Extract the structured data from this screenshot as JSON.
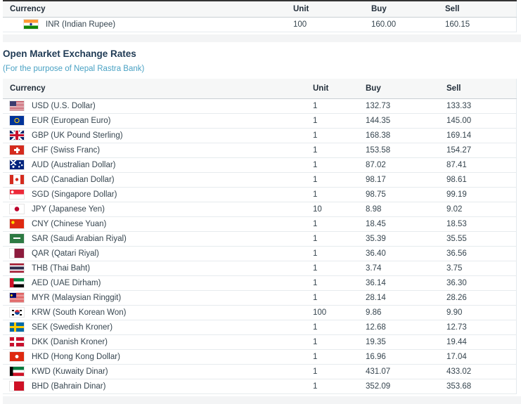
{
  "colors": {
    "heading": "#1f3a54",
    "subtitle_teal": "#4aa2c4",
    "body_text": "#36454f",
    "header_band_bg": "#f6f7f7",
    "table_top_border": "#333333",
    "header_bottom_border": "#c9d0d4",
    "row_separator": "#e6ebee",
    "foot_strip_bg": "#f3f4f5"
  },
  "inr_table": {
    "headers": {
      "currency": "Currency",
      "unit": "Unit",
      "buy": "Buy",
      "sell": "Sell"
    },
    "rows": [
      {
        "flag": "in",
        "flag_name": "india-flag-icon",
        "label": "INR (Indian Rupee)",
        "unit": "100",
        "buy": "160.00",
        "sell": "160.15"
      }
    ]
  },
  "section": {
    "title": "Open Market Exchange Rates",
    "subtitle": "(For the purpose of Nepal Rastra Bank)"
  },
  "open_market_table": {
    "headers": {
      "currency": "Currency",
      "unit": "Unit",
      "buy": "Buy",
      "sell": "Sell"
    },
    "rows": [
      {
        "flag": "us",
        "flag_name": "usa-flag-icon",
        "label": "USD (U.S. Dollar)",
        "unit": "1",
        "buy": "132.73",
        "sell": "133.33"
      },
      {
        "flag": "eu",
        "flag_name": "eu-flag-icon",
        "label": "EUR (European Euro)",
        "unit": "1",
        "buy": "144.35",
        "sell": "145.00"
      },
      {
        "flag": "gb",
        "flag_name": "uk-flag-icon",
        "label": "GBP (UK Pound Sterling)",
        "unit": "1",
        "buy": "168.38",
        "sell": "169.14"
      },
      {
        "flag": "ch",
        "flag_name": "switzerland-flag-icon",
        "label": "CHF (Swiss Franc)",
        "unit": "1",
        "buy": "153.58",
        "sell": "154.27"
      },
      {
        "flag": "au",
        "flag_name": "australia-flag-icon",
        "label": "AUD (Australian Dollar)",
        "unit": "1",
        "buy": "87.02",
        "sell": "87.41"
      },
      {
        "flag": "ca",
        "flag_name": "canada-flag-icon",
        "label": "CAD (Canadian Dollar)",
        "unit": "1",
        "buy": "98.17",
        "sell": "98.61"
      },
      {
        "flag": "sg",
        "flag_name": "singapore-flag-icon",
        "label": "SGD (Singapore Dollar)",
        "unit": "1",
        "buy": "98.75",
        "sell": "99.19"
      },
      {
        "flag": "jp",
        "flag_name": "japan-flag-icon",
        "label": "JPY (Japanese Yen)",
        "unit": "10",
        "buy": "8.98",
        "sell": "9.02"
      },
      {
        "flag": "cn",
        "flag_name": "china-flag-icon",
        "label": "CNY (Chinese Yuan)",
        "unit": "1",
        "buy": "18.45",
        "sell": "18.53"
      },
      {
        "flag": "sa",
        "flag_name": "saudi-arabia-flag-icon",
        "label": "SAR (Saudi Arabian Riyal)",
        "unit": "1",
        "buy": "35.39",
        "sell": "35.55"
      },
      {
        "flag": "qa",
        "flag_name": "qatar-flag-icon",
        "label": "QAR (Qatari Riyal)",
        "unit": "1",
        "buy": "36.40",
        "sell": "36.56"
      },
      {
        "flag": "th",
        "flag_name": "thailand-flag-icon",
        "label": "THB (Thai Baht)",
        "unit": "1",
        "buy": "3.74",
        "sell": "3.75"
      },
      {
        "flag": "ae",
        "flag_name": "uae-flag-icon",
        "label": "AED (UAE Dirham)",
        "unit": "1",
        "buy": "36.14",
        "sell": "36.30"
      },
      {
        "flag": "my",
        "flag_name": "malaysia-flag-icon",
        "label": "MYR (Malaysian Ringgit)",
        "unit": "1",
        "buy": "28.14",
        "sell": "28.26"
      },
      {
        "flag": "kr",
        "flag_name": "south-korea-flag-icon",
        "label": "KRW (South Korean Won)",
        "unit": "100",
        "buy": "9.86",
        "sell": "9.90"
      },
      {
        "flag": "se",
        "flag_name": "sweden-flag-icon",
        "label": "SEK (Swedish Kroner)",
        "unit": "1",
        "buy": "12.68",
        "sell": "12.73"
      },
      {
        "flag": "dk",
        "flag_name": "denmark-flag-icon",
        "label": "DKK (Danish Kroner)",
        "unit": "1",
        "buy": "19.35",
        "sell": "19.44"
      },
      {
        "flag": "hk",
        "flag_name": "hong-kong-flag-icon",
        "label": "HKD (Hong Kong Dollar)",
        "unit": "1",
        "buy": "16.96",
        "sell": "17.04"
      },
      {
        "flag": "kw",
        "flag_name": "kuwait-flag-icon",
        "label": "KWD (Kuwaity Dinar)",
        "unit": "1",
        "buy": "431.07",
        "sell": "433.02"
      },
      {
        "flag": "bh",
        "flag_name": "bahrain-flag-icon",
        "label": "BHD (Bahrain Dinar)",
        "unit": "1",
        "buy": "352.09",
        "sell": "353.68"
      }
    ]
  }
}
